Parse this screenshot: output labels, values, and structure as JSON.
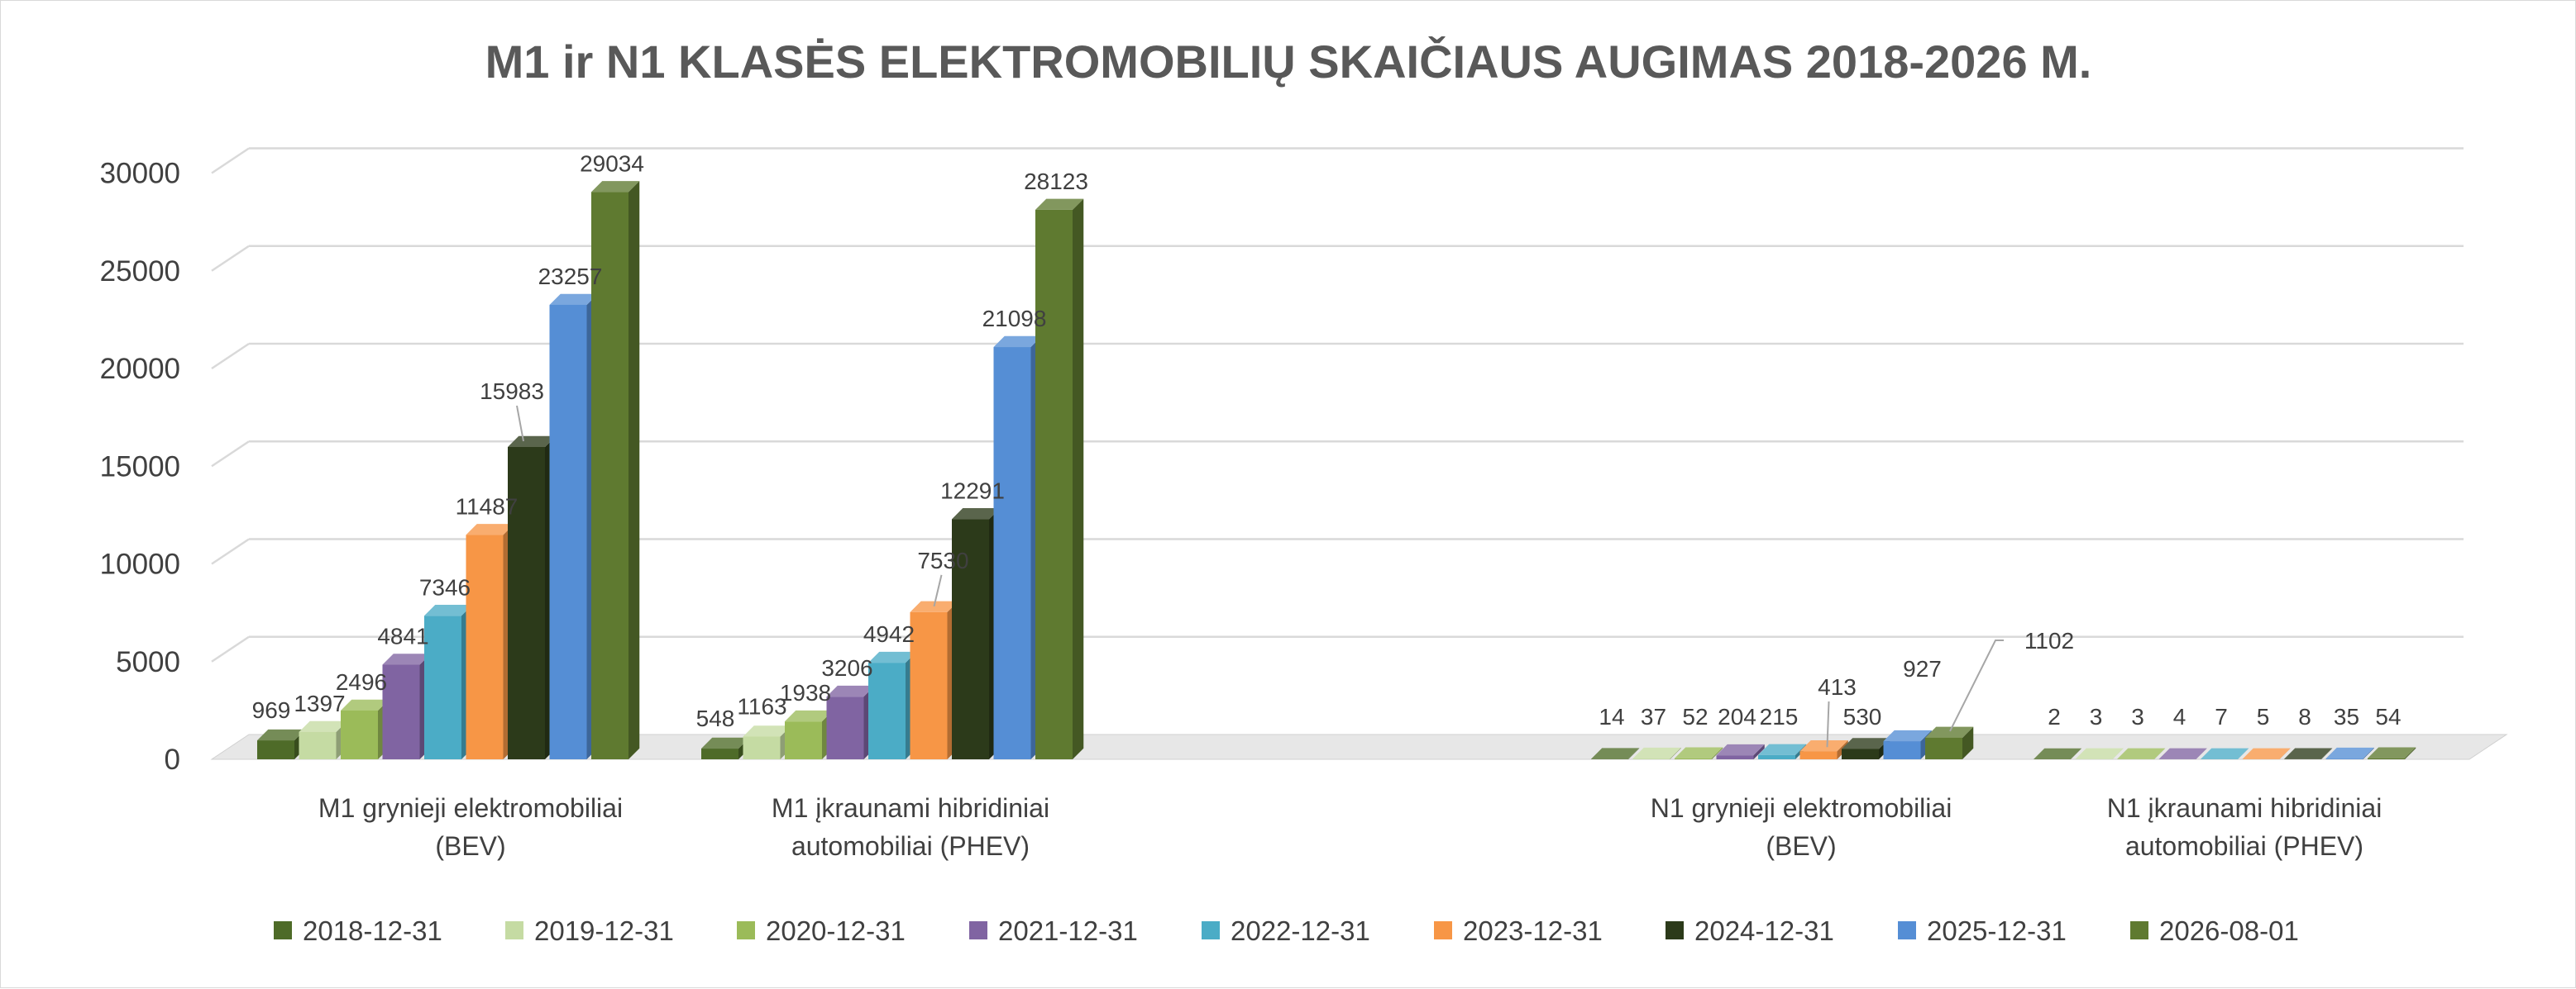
{
  "chart_data": {
    "type": "bar",
    "title": "M1 ir N1 KLASĖS ELEKTROMOBILIŲ SKAIČIAUS AUGIMAS 2018-2026 M.",
    "categories": [
      [
        "M1 grynieji elektromobiliai",
        "(BEV)"
      ],
      [
        "M1 įkraunami hibridiniai",
        "automobiliai (PHEV)"
      ],
      [
        "N1 grynieji elektromobiliai",
        "(BEV)"
      ],
      [
        "N1 įkraunami hibridiniai",
        "automobiliai (PHEV)"
      ]
    ],
    "series": [
      {
        "name": "2018-12-31",
        "color": "#4e6b28",
        "values": [
          969,
          548,
          14,
          2
        ]
      },
      {
        "name": "2019-12-31",
        "color": "#c5dba3",
        "values": [
          1397,
          1163,
          37,
          3
        ]
      },
      {
        "name": "2020-12-31",
        "color": "#9bbb59",
        "values": [
          2496,
          1938,
          52,
          3
        ]
      },
      {
        "name": "2021-12-31",
        "color": "#8064a2",
        "values": [
          4841,
          3206,
          204,
          4
        ]
      },
      {
        "name": "2022-12-31",
        "color": "#4bacc6",
        "values": [
          7346,
          4942,
          215,
          7
        ]
      },
      {
        "name": "2023-12-31",
        "color": "#f79646",
        "values": [
          11487,
          7530,
          413,
          5
        ]
      },
      {
        "name": "2024-12-31",
        "color": "#2c3a1a",
        "values": [
          15983,
          12291,
          530,
          8
        ]
      },
      {
        "name": "2025-12-31",
        "color": "#558ed5",
        "values": [
          23257,
          21098,
          927,
          35
        ]
      },
      {
        "name": "2026-08-01",
        "color": "#5f7a30",
        "values": [
          29034,
          28123,
          1102,
          54
        ]
      }
    ],
    "y_ticks": [
      "0",
      "5000",
      "10000",
      "15000",
      "20000",
      "25000",
      "30000"
    ],
    "ylim": [
      0,
      30000
    ],
    "xlabel": "",
    "ylabel": "",
    "grid": true,
    "legend_position": "bottom",
    "render_3d": true
  }
}
